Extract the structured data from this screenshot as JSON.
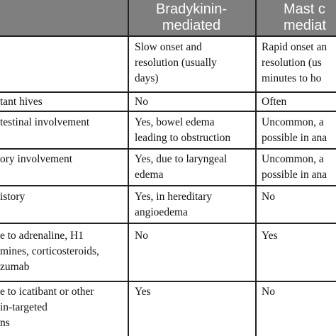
{
  "table": {
    "header": {
      "bradykinin": "Bradykinin-\nmediated",
      "mast_cell": "Mast c\nmediat"
    },
    "rows": [
      {
        "feature": "",
        "bradykinin": "Slow onset and\nresolution (usually\ndays)",
        "mast_cell": "Rapid onset an\nresolution (us\nminutes to ho"
      },
      {
        "feature": "tant hives",
        "bradykinin": "No",
        "mast_cell": "Often"
      },
      {
        "feature": "testinal involvement",
        "bradykinin": "Yes, bowel edema\nleading to obstruction",
        "mast_cell": "Uncommon, a\npossible in ana"
      },
      {
        "feature": "ory involvement",
        "bradykinin": "Yes, due to laryngeal\nedema",
        "mast_cell": "Uncommon, a\npossible in ana"
      },
      {
        "feature": "istory",
        "bradykinin": "Yes, in hereditary\nangioedema",
        "mast_cell": "No"
      },
      {
        "feature": "e to adrenaline, H1\nmines, corticosteroids,\nzumab",
        "bradykinin": "No",
        "mast_cell": "Yes"
      },
      {
        "feature": "e to icatibant or other\nin-targeted\nns",
        "bradykinin": "Yes",
        "mast_cell": "No"
      }
    ]
  },
  "colors": {
    "header_background": "#7f7f7f",
    "header_text": "#ffffff",
    "rule_lines": "#222222"
  }
}
